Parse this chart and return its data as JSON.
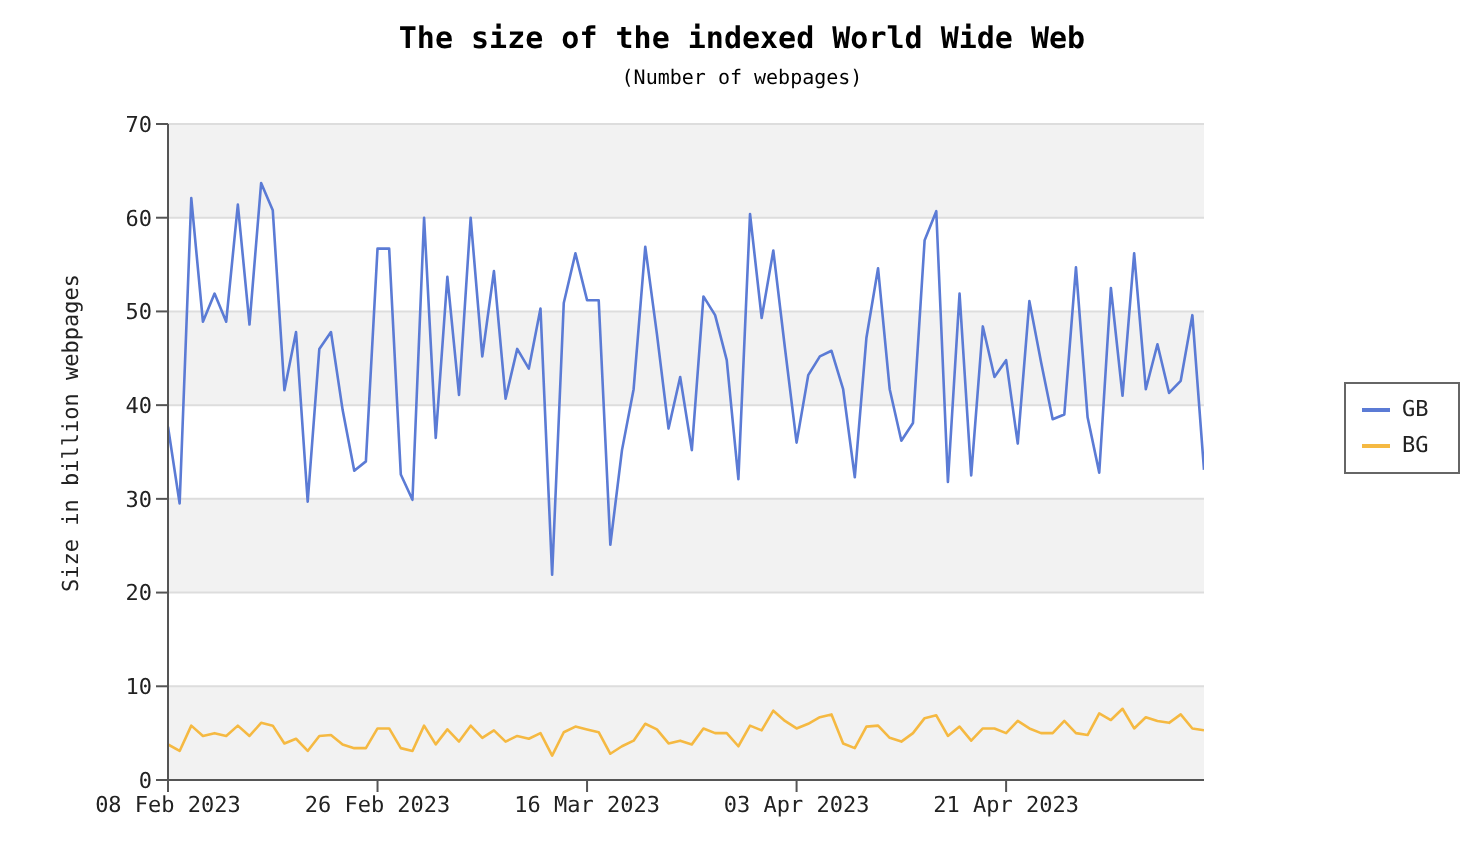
{
  "chart_data": {
    "type": "line",
    "title": "The size of the indexed World Wide Web",
    "subtitle": "(Number of webpages)",
    "ylabel": "Size in billion webpages",
    "x": [
      "2023-02-08",
      "2023-02-09",
      "2023-02-10",
      "2023-02-11",
      "2023-02-12",
      "2023-02-13",
      "2023-02-14",
      "2023-02-15",
      "2023-02-16",
      "2023-02-17",
      "2023-02-18",
      "2023-02-19",
      "2023-02-20",
      "2023-02-21",
      "2023-02-22",
      "2023-02-23",
      "2023-02-24",
      "2023-02-25",
      "2023-02-26",
      "2023-02-27",
      "2023-02-28",
      "2023-03-01",
      "2023-03-02",
      "2023-03-03",
      "2023-03-04",
      "2023-03-05",
      "2023-03-06",
      "2023-03-07",
      "2023-03-08",
      "2023-03-09",
      "2023-03-10",
      "2023-03-11",
      "2023-03-12",
      "2023-03-13",
      "2023-03-14",
      "2023-03-15",
      "2023-03-16",
      "2023-03-17",
      "2023-03-18",
      "2023-03-19",
      "2023-03-20",
      "2023-03-21",
      "2023-03-22",
      "2023-03-23",
      "2023-03-24",
      "2023-03-25",
      "2023-03-26",
      "2023-03-27",
      "2023-03-28",
      "2023-03-29",
      "2023-03-30",
      "2023-03-31",
      "2023-04-01",
      "2023-04-02",
      "2023-04-03",
      "2023-04-04",
      "2023-04-05",
      "2023-04-06",
      "2023-04-07",
      "2023-04-08",
      "2023-04-09",
      "2023-04-10",
      "2023-04-11",
      "2023-04-12",
      "2023-04-13",
      "2023-04-14",
      "2023-04-15",
      "2023-04-16",
      "2023-04-17",
      "2023-04-18",
      "2023-04-19",
      "2023-04-20",
      "2023-04-21",
      "2023-04-22",
      "2023-04-23",
      "2023-04-24",
      "2023-04-25",
      "2023-04-26",
      "2023-04-27",
      "2023-04-28",
      "2023-04-29",
      "2023-04-30",
      "2023-05-01",
      "2023-05-02",
      "2023-05-03",
      "2023-05-04",
      "2023-05-05",
      "2023-05-06",
      "2023-05-07",
      "2023-05-08"
    ],
    "series": [
      {
        "name": "GB",
        "color": "#5b7bd5",
        "values": [
          37.7,
          29.5,
          62.1,
          48.9,
          51.9,
          48.9,
          61.4,
          48.6,
          63.7,
          60.8,
          41.6,
          47.8,
          29.7,
          46.0,
          47.8,
          39.5,
          33.0,
          34.0,
          56.7,
          56.7,
          32.6,
          29.9,
          60.0,
          36.5,
          53.7,
          41.1,
          60.0,
          45.2,
          54.3,
          40.7,
          46.0,
          43.9,
          50.3,
          21.9,
          50.9,
          56.2,
          51.2,
          51.2,
          25.1,
          35.2,
          41.7,
          56.9,
          47.6,
          37.5,
          43.0,
          35.2,
          51.6,
          49.6,
          44.8,
          32.1,
          60.4,
          49.3,
          56.5,
          46.1,
          36.0,
          43.2,
          45.2,
          45.8,
          41.7,
          32.3,
          47.2,
          54.6,
          41.7,
          36.2,
          38.1,
          57.6,
          60.7,
          31.8,
          51.9,
          32.5,
          48.4,
          43.0,
          44.8,
          35.9,
          51.1,
          44.6,
          38.5,
          39.0,
          54.7,
          38.7,
          32.8,
          52.5,
          41.0,
          56.2,
          41.7,
          46.5,
          41.3,
          42.6,
          49.6,
          33.1
        ]
      },
      {
        "name": "BG",
        "color": "#f5b942",
        "values": [
          3.8,
          3.1,
          5.8,
          4.7,
          5.0,
          4.7,
          5.8,
          4.7,
          6.1,
          5.8,
          3.9,
          4.4,
          3.1,
          4.7,
          4.8,
          3.8,
          3.4,
          3.4,
          5.5,
          5.5,
          3.4,
          3.1,
          5.8,
          3.8,
          5.4,
          4.1,
          5.8,
          4.5,
          5.3,
          4.1,
          4.7,
          4.4,
          5.0,
          2.6,
          5.1,
          5.7,
          5.4,
          5.1,
          2.8,
          3.6,
          4.2,
          6.0,
          5.4,
          3.9,
          4.2,
          3.8,
          5.5,
          5.0,
          5.0,
          3.6,
          5.8,
          5.3,
          7.4,
          6.3,
          5.5,
          6.0,
          6.7,
          7.0,
          3.9,
          3.4,
          5.7,
          5.8,
          4.5,
          4.1,
          5.0,
          6.6,
          6.9,
          4.7,
          5.7,
          4.2,
          5.5,
          5.5,
          5.0,
          6.3,
          5.5,
          5.0,
          5.0,
          6.3,
          5.0,
          4.8,
          7.1,
          6.4,
          7.6,
          5.5,
          6.7,
          6.3,
          6.1,
          7.0,
          5.5,
          5.3
        ]
      }
    ],
    "xlim": [
      "2023-02-08",
      "2023-05-08"
    ],
    "xticks": [
      {
        "value": "2023-02-08",
        "label": "08 Feb 2023"
      },
      {
        "value": "2023-02-26",
        "label": "26 Feb 2023"
      },
      {
        "value": "2023-03-16",
        "label": "16 Mar 2023"
      },
      {
        "value": "2023-04-03",
        "label": "03 Apr 2023"
      },
      {
        "value": "2023-04-21",
        "label": "21 Apr 2023"
      }
    ],
    "ylim": [
      0,
      70
    ],
    "yticks": [
      0,
      10,
      20,
      30,
      40,
      50,
      60,
      70
    ],
    "grid": "y",
    "legend": "right",
    "marker": "none",
    "line_style": "solid"
  }
}
